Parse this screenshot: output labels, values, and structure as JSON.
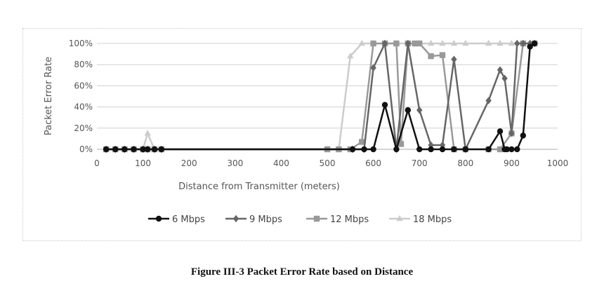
{
  "caption": "Figure III-3 Packet Error Rate based on Distance",
  "chart_data": {
    "type": "line",
    "title": "",
    "xlabel": "Distance from Transmitter (meters)",
    "ylabel": "Packet Error Rate",
    "xlim": [
      0,
      1000
    ],
    "ylim": [
      0,
      100
    ],
    "xticks": [
      0,
      100,
      200,
      300,
      400,
      500,
      600,
      700,
      800,
      900,
      1000
    ],
    "yticks": [
      0,
      20,
      40,
      60,
      80,
      100
    ],
    "ytick_labels": [
      "0%",
      "20%",
      "40%",
      "60%",
      "80%",
      "100%"
    ],
    "grid": "horizontal",
    "legend_position": "bottom",
    "series": [
      {
        "name": "6 Mbps",
        "color": "#111111",
        "marker": "circle",
        "x": [
          20,
          40,
          60,
          80,
          100,
          110,
          125,
          140,
          555,
          580,
          600,
          625,
          650,
          675,
          700,
          725,
          750,
          775,
          800,
          850,
          875,
          885,
          890,
          900,
          912,
          925,
          940,
          950
        ],
        "y": [
          0,
          0,
          0,
          0,
          0,
          0,
          0,
          0,
          0,
          0,
          0,
          42,
          0,
          37,
          0,
          0,
          0,
          0,
          0,
          0,
          17,
          0,
          0,
          0,
          0,
          13,
          97,
          100
        ]
      },
      {
        "name": "9 Mbps",
        "color": "#666666",
        "marker": "diamond",
        "x": [
          20,
          40,
          60,
          80,
          100,
          110,
          125,
          140,
          555,
          580,
          600,
          625,
          650,
          675,
          700,
          725,
          750,
          775,
          800,
          850,
          875,
          885,
          900,
          912,
          925,
          940,
          950
        ],
        "y": [
          0,
          0,
          0,
          0,
          0,
          0,
          0,
          0,
          0,
          0,
          77,
          100,
          0,
          100,
          37,
          4,
          4,
          85,
          0,
          46,
          75,
          67,
          15,
          100,
          100,
          100,
          100
        ]
      },
      {
        "name": "12 Mbps",
        "color": "#999999",
        "marker": "square",
        "x": [
          20,
          40,
          60,
          80,
          100,
          110,
          125,
          140,
          500,
          525,
          550,
          575,
          600,
          625,
          650,
          660,
          675,
          690,
          700,
          725,
          750,
          775,
          800,
          850,
          875,
          900,
          925,
          950
        ],
        "y": [
          0,
          0,
          0,
          0,
          0,
          0,
          0,
          0,
          0,
          0,
          0,
          7,
          100,
          100,
          100,
          5,
          100,
          100,
          100,
          88,
          89,
          0,
          0,
          0,
          0,
          15,
          100,
          100
        ]
      },
      {
        "name": "18 Mbps",
        "color": "#cccccc",
        "marker": "triangle",
        "x": [
          20,
          40,
          60,
          80,
          100,
          110,
          125,
          140,
          500,
          525,
          550,
          575,
          600,
          625,
          650,
          675,
          700,
          725,
          750,
          775,
          800,
          850,
          875,
          900,
          925,
          950
        ],
        "y": [
          0,
          0,
          0,
          0,
          0,
          15,
          0,
          0,
          0,
          0,
          88,
          100,
          100,
          100,
          100,
          100,
          100,
          100,
          100,
          100,
          100,
          100,
          100,
          100,
          100,
          100
        ]
      }
    ]
  }
}
